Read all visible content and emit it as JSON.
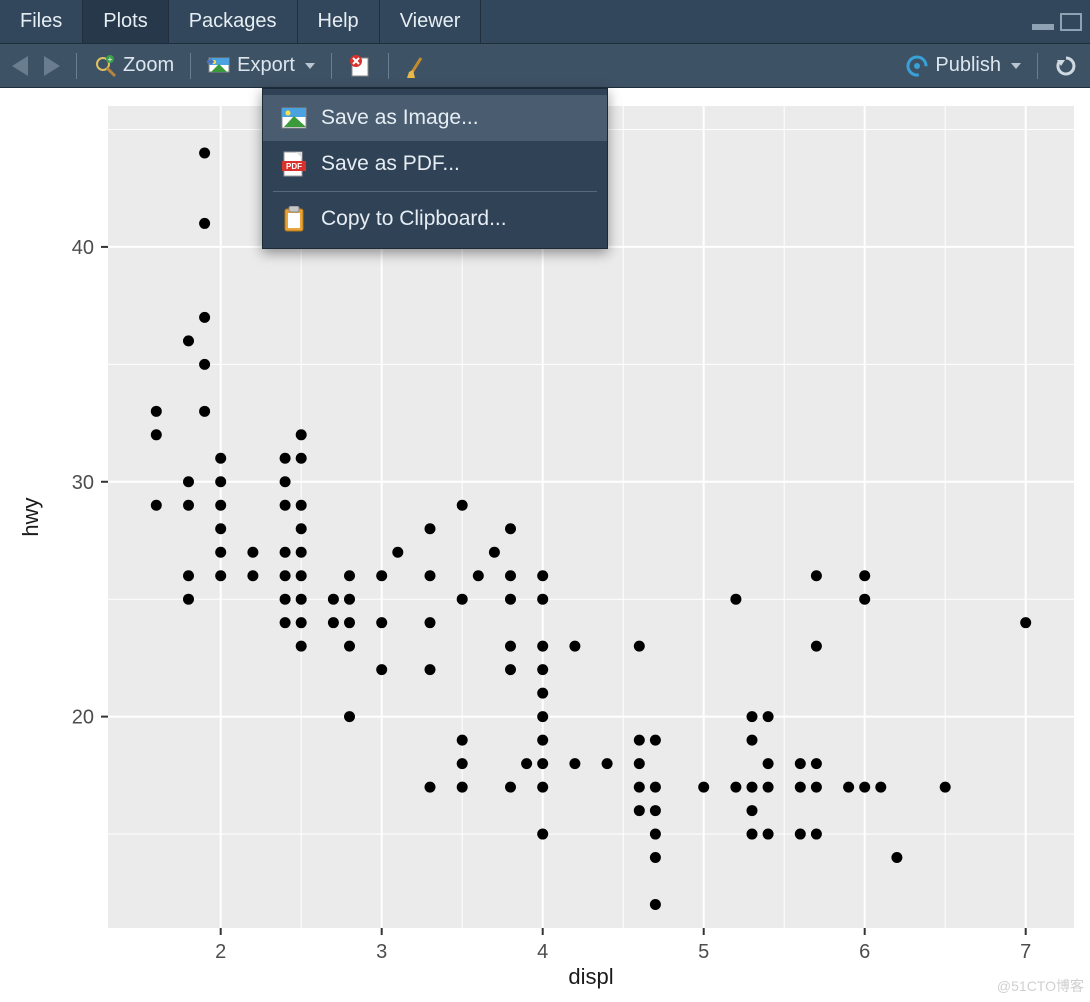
{
  "tabs": {
    "items": [
      "Files",
      "Plots",
      "Packages",
      "Help",
      "Viewer"
    ],
    "active_index": 1
  },
  "toolbar": {
    "zoom_label": "Zoom",
    "export_label": "Export",
    "publish_label": "Publish"
  },
  "export_menu": {
    "items": [
      {
        "label": "Save as Image...",
        "icon": "image",
        "hover": true
      },
      {
        "label": "Save as PDF...",
        "icon": "pdf",
        "hover": false
      },
      {
        "label": "Copy to Clipboard...",
        "icon": "clipboard",
        "hover": false
      }
    ],
    "separator_after_index": 1
  },
  "scatter_chart": {
    "type": "scatter",
    "xlabel": "displ",
    "ylabel": "hwy",
    "x_ticks": [
      2,
      3,
      4,
      5,
      6,
      7
    ],
    "y_ticks": [
      20,
      30,
      40
    ],
    "x_minor": [
      2.5,
      3.5,
      4.5,
      5.5,
      6.5
    ],
    "y_minor": [
      15,
      25,
      35,
      45
    ],
    "xlim": [
      1.3,
      7.3
    ],
    "ylim": [
      11,
      46
    ],
    "panel_bg": "#ebebeb",
    "page_bg": "#ffffff",
    "grid_major_color": "#ffffff",
    "grid_minor_color": "#ffffff",
    "point_color": "#000000",
    "point_radius": 5.5,
    "tick_fontsize": 20,
    "axis_title_fontsize": 22,
    "points": [
      [
        1.6,
        33
      ],
      [
        1.6,
        32
      ],
      [
        1.6,
        29
      ],
      [
        1.8,
        36
      ],
      [
        1.8,
        30
      ],
      [
        1.8,
        29
      ],
      [
        1.8,
        26
      ],
      [
        1.8,
        25
      ],
      [
        1.9,
        44
      ],
      [
        1.9,
        41
      ],
      [
        1.9,
        37
      ],
      [
        1.9,
        35
      ],
      [
        1.9,
        33
      ],
      [
        2.0,
        31
      ],
      [
        2.0,
        30
      ],
      [
        2.0,
        29
      ],
      [
        2.0,
        28
      ],
      [
        2.0,
        27
      ],
      [
        2.0,
        26
      ],
      [
        2.2,
        27
      ],
      [
        2.2,
        26
      ],
      [
        2.4,
        31
      ],
      [
        2.4,
        30
      ],
      [
        2.4,
        29
      ],
      [
        2.4,
        27
      ],
      [
        2.4,
        26
      ],
      [
        2.4,
        25
      ],
      [
        2.4,
        24
      ],
      [
        2.5,
        32
      ],
      [
        2.5,
        31
      ],
      [
        2.5,
        29
      ],
      [
        2.5,
        28
      ],
      [
        2.5,
        27
      ],
      [
        2.5,
        26
      ],
      [
        2.5,
        25
      ],
      [
        2.5,
        24
      ],
      [
        2.5,
        23
      ],
      [
        2.7,
        25
      ],
      [
        2.7,
        24
      ],
      [
        2.8,
        26
      ],
      [
        2.8,
        25
      ],
      [
        2.8,
        24
      ],
      [
        2.8,
        23
      ],
      [
        2.8,
        20
      ],
      [
        3.0,
        26
      ],
      [
        3.0,
        24
      ],
      [
        3.0,
        22
      ],
      [
        3.1,
        27
      ],
      [
        3.3,
        28
      ],
      [
        3.3,
        26
      ],
      [
        3.3,
        24
      ],
      [
        3.3,
        22
      ],
      [
        3.3,
        17
      ],
      [
        3.5,
        29
      ],
      [
        3.5,
        25
      ],
      [
        3.5,
        19
      ],
      [
        3.5,
        18
      ],
      [
        3.5,
        17
      ],
      [
        3.6,
        26
      ],
      [
        3.7,
        27
      ],
      [
        3.8,
        28
      ],
      [
        3.8,
        26
      ],
      [
        3.8,
        25
      ],
      [
        3.8,
        23
      ],
      [
        3.8,
        22
      ],
      [
        3.8,
        17
      ],
      [
        3.9,
        18
      ],
      [
        4.0,
        26
      ],
      [
        4.0,
        25
      ],
      [
        4.0,
        23
      ],
      [
        4.0,
        22
      ],
      [
        4.0,
        21
      ],
      [
        4.0,
        20
      ],
      [
        4.0,
        19
      ],
      [
        4.0,
        18
      ],
      [
        4.0,
        17
      ],
      [
        4.0,
        15
      ],
      [
        4.2,
        23
      ],
      [
        4.2,
        18
      ],
      [
        4.4,
        18
      ],
      [
        4.6,
        23
      ],
      [
        4.6,
        19
      ],
      [
        4.6,
        18
      ],
      [
        4.6,
        17
      ],
      [
        4.6,
        16
      ],
      [
        4.7,
        19
      ],
      [
        4.7,
        17
      ],
      [
        4.7,
        16
      ],
      [
        4.7,
        15
      ],
      [
        4.7,
        14
      ],
      [
        4.7,
        12
      ],
      [
        5.0,
        17
      ],
      [
        5.2,
        25
      ],
      [
        5.2,
        17
      ],
      [
        5.3,
        20
      ],
      [
        5.3,
        19
      ],
      [
        5.3,
        17
      ],
      [
        5.3,
        16
      ],
      [
        5.3,
        15
      ],
      [
        5.4,
        20
      ],
      [
        5.4,
        18
      ],
      [
        5.4,
        17
      ],
      [
        5.4,
        15
      ],
      [
        5.6,
        18
      ],
      [
        5.6,
        17
      ],
      [
        5.6,
        15
      ],
      [
        5.7,
        26
      ],
      [
        5.7,
        23
      ],
      [
        5.7,
        18
      ],
      [
        5.7,
        17
      ],
      [
        5.7,
        15
      ],
      [
        5.9,
        17
      ],
      [
        6.0,
        26
      ],
      [
        6.0,
        25
      ],
      [
        6.0,
        17
      ],
      [
        6.1,
        17
      ],
      [
        6.2,
        14
      ],
      [
        6.5,
        17
      ],
      [
        7.0,
        24
      ]
    ]
  },
  "watermark": "@51CTO博客"
}
